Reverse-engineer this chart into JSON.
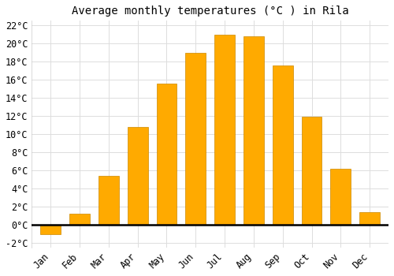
{
  "title": "Average monthly temperatures (°C ) in Rila",
  "months": [
    "Jan",
    "Feb",
    "Mar",
    "Apr",
    "May",
    "Jun",
    "Jul",
    "Aug",
    "Sep",
    "Oct",
    "Nov",
    "Dec"
  ],
  "values": [
    -1.0,
    1.2,
    5.4,
    10.8,
    15.6,
    19.0,
    21.0,
    20.8,
    17.6,
    11.9,
    6.2,
    1.4
  ],
  "bar_color": "#FFAA00",
  "bar_edge_color": "#CC8800",
  "ylim": [
    -2.5,
    22.5
  ],
  "yticks": [
    -2,
    0,
    2,
    4,
    6,
    8,
    10,
    12,
    14,
    16,
    18,
    20,
    22
  ],
  "ytick_labels": [
    "-2°C",
    "0°C",
    "2°C",
    "4°C",
    "6°C",
    "8°C",
    "10°C",
    "12°C",
    "14°C",
    "16°C",
    "18°C",
    "20°C",
    "22°C"
  ],
  "background_color": "#ffffff",
  "grid_color": "#dddddd",
  "title_fontsize": 10,
  "tick_fontsize": 8.5,
  "bar_width": 0.7
}
